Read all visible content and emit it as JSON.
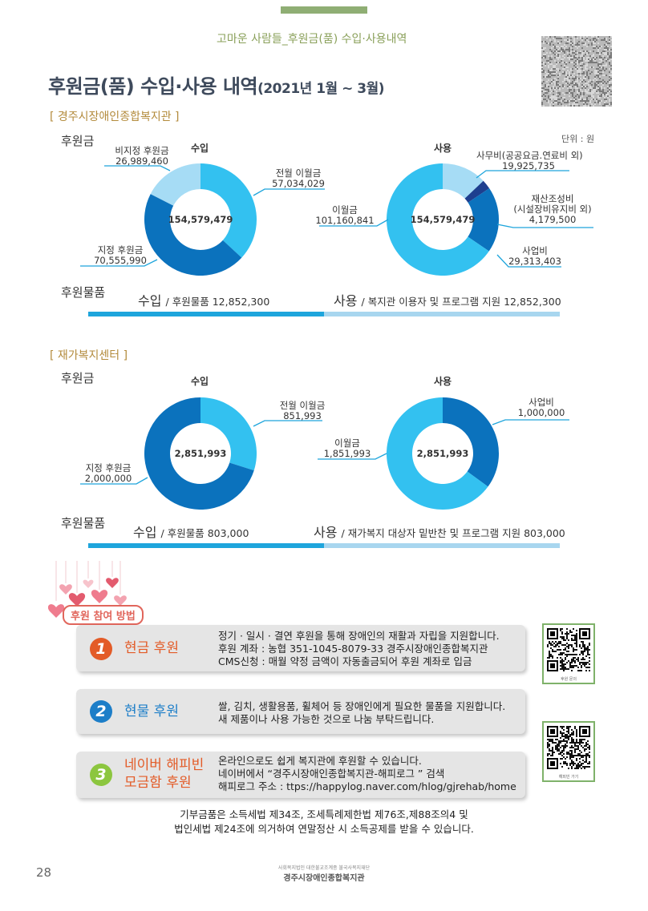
{
  "header": {
    "subtitle": "고마운 사람들_후원금(품) 수입·사용내역",
    "title": "후원금(품) 수입·사용 내역",
    "title_date": "(2021년 1월 ~ 3월)"
  },
  "section1": {
    "name": "[ 경주시장애인종합복지관 ]",
    "funds_label": "후원금",
    "unit": "단위 : 원",
    "income_head": "수입",
    "usage_head": "사용",
    "goods_label": "후원물품",
    "goods_income_title": "수입",
    "goods_income_text": "/ 후원물품 12,852,300",
    "goods_usage_title": "사용",
    "goods_usage_text": "/ 복지관 이용자 및 프로그램 지원 12,852,300"
  },
  "section2": {
    "name": "[ 재가복지센터 ]",
    "funds_label": "후원금",
    "income_head": "수입",
    "usage_head": "사용",
    "goods_label": "후원물품",
    "goods_income_title": "수입",
    "goods_income_text": "/ 후원물품 803,000",
    "goods_usage_title": "사용",
    "goods_usage_text": "/ 재가복지 대상자 밑반찬 및 프로그램 지원 803,000"
  },
  "chart_data": [
    {
      "type": "pie",
      "title": "수입",
      "center_total": "154,579,479",
      "labels": [
        "전월 이월금",
        "지정 후원금",
        "비지정 후원금"
      ],
      "values": [
        57034029,
        70555990,
        26989460
      ],
      "value_labels": [
        "57,034,029",
        "70,555,990",
        "26,989,460"
      ],
      "colors": [
        "#33c1f0",
        "#0b72bd",
        "#a6dcf5"
      ]
    },
    {
      "type": "pie",
      "title": "사용",
      "center_total": "154,579,479",
      "labels": [
        "사무비(공공요금.연료비 외)",
        "재산조성비",
        "사업비",
        "이월금"
      ],
      "label_extra": [
        "",
        "(시설장비유지비 외)",
        "",
        ""
      ],
      "values": [
        19925735,
        4179500,
        29313403,
        101160841
      ],
      "value_labels": [
        "19,925,735",
        "4,179,500",
        "29,313,403",
        "101,160,841"
      ],
      "colors": [
        "#a6dcf5",
        "#1d3f8f",
        "#0b72bd",
        "#33c1f0"
      ]
    },
    {
      "type": "pie",
      "title": "수입",
      "center_total": "2,851,993",
      "labels": [
        "전월 이월금",
        "지정 후원금"
      ],
      "values": [
        851993,
        2000000
      ],
      "value_labels": [
        "851,993",
        "2,000,000"
      ],
      "colors": [
        "#33c1f0",
        "#0b72bd"
      ]
    },
    {
      "type": "pie",
      "title": "사용",
      "center_total": "2,851,993",
      "labels": [
        "사업비",
        "이월금"
      ],
      "values": [
        1000000,
        1851993
      ],
      "value_labels": [
        "1,000,000",
        "1,851,993"
      ],
      "colors": [
        "#0b72bd",
        "#33c1f0"
      ]
    }
  ],
  "methods": {
    "tag": "후원 참여 방법",
    "items": [
      {
        "num": "1",
        "title1": "현금 후원",
        "title2": "",
        "lines": [
          "정기 · 일시 · 결연 후원을 통해 장애인의 재활과 자립을 지원합니다.",
          "후원 계좌 : 농협 351-1045-8079-33 경주시장애인종합복지관",
          "CMS신청 : 매월 약정 금액이 자동출금되어 후원 계좌로 입금"
        ]
      },
      {
        "num": "2",
        "title1": "현물 후원",
        "title2": "",
        "lines": [
          "쌀, 김치, 생활용품, 휠체어 등 장애인에게 필요한 물품을 지원합니다.",
          "새 제품이나 사용 가능한 것으로 나눔 부탁드립니다."
        ]
      },
      {
        "num": "3",
        "title1": "네이버 해피빈",
        "title2": "모금함 후원",
        "lines": [
          "온라인으로도 쉽게 복지관에 후원할 수 있습니다.",
          "네이버에서 “경주시장애인종합복지관-해피로그 ” 검색",
          "해피로그 주소 : ttps://happylog.naver.com/hlog/gjrehab/home"
        ]
      }
    ],
    "colors": [
      "#e35b27",
      "#1d7ec8",
      "#8cc63f"
    ]
  },
  "qr": {
    "cap1": "후원 문의",
    "cap2": "해피빈 가기"
  },
  "footer": {
    "note_line1": "기부금품은 소득세법 제34조, 조세특례제한법 제76조,제88조의4 및",
    "note_line2": "법인세법 제24조에 의거하여 연말정산 시 소득공제를 받을 수 있습니다.",
    "page_number": "28",
    "org_small": "사회복지법인 대한불교조계종 불국사복지재단",
    "org_big": "경주시장애인종합복지관"
  }
}
